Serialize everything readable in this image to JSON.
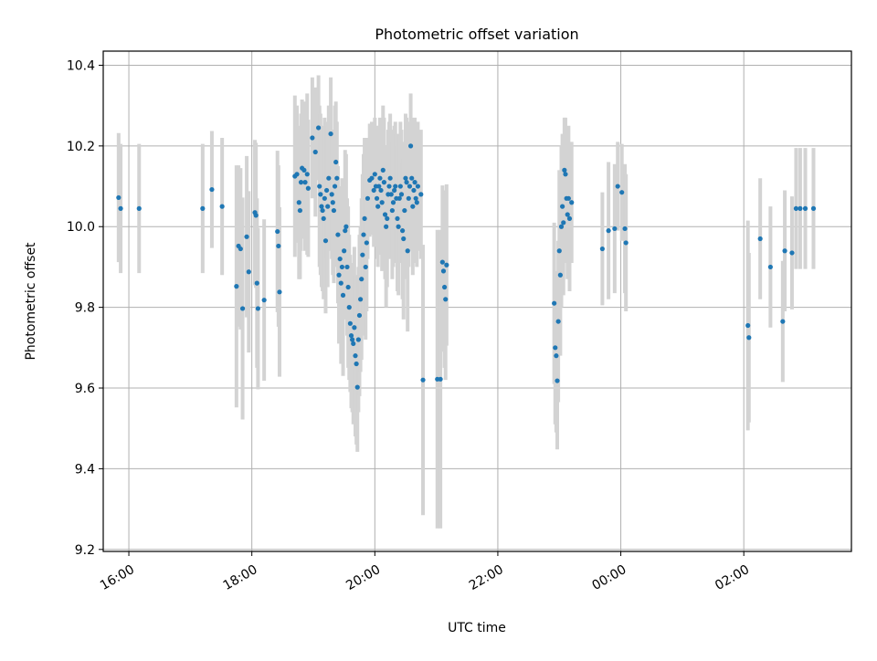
{
  "chart_data": {
    "type": "scatter",
    "title": "Photometric offset variation",
    "xlabel": "UTC time",
    "ylabel": "Photometric offset",
    "x_axis_type": "time",
    "xlim": [
      "15:35",
      "27:45"
    ],
    "ylim": [
      9.195,
      10.435
    ],
    "grid": true,
    "x_ticks": [
      {
        "label": "16:00",
        "value": "16:00"
      },
      {
        "label": "18:00",
        "value": "18:00"
      },
      {
        "label": "20:00",
        "value": "20:00"
      },
      {
        "label": "22:00",
        "value": "22:00"
      },
      {
        "label": "00:00",
        "value": "24:00"
      },
      {
        "label": "02:00",
        "value": "26:00"
      }
    ],
    "y_ticks": [
      {
        "label": "9.2",
        "value": 9.2
      },
      {
        "label": "9.4",
        "value": 9.4
      },
      {
        "label": "9.6",
        "value": 9.6
      },
      {
        "label": "9.8",
        "value": 9.8
      },
      {
        "label": "10.0",
        "value": 10.0
      },
      {
        "label": "10.2",
        "value": 10.2
      },
      {
        "label": "10.4",
        "value": 10.4
      }
    ],
    "marker_color": "#1f77b4",
    "errorbar_color": "#d3d3d3",
    "series": [
      {
        "points": [
          {
            "t": "15:50",
            "y": 10.072,
            "err": 0.16
          },
          {
            "t": "15:52",
            "y": 10.045,
            "err": 0.16
          },
          {
            "t": "16:10",
            "y": 10.045,
            "err": 0.16
          },
          {
            "t": "17:12",
            "y": 10.045,
            "err": 0.16
          },
          {
            "t": "17:21",
            "y": 10.092,
            "err": 0.145
          },
          {
            "t": "17:31",
            "y": 10.05,
            "err": 0.17
          },
          {
            "t": "17:45",
            "y": 9.852,
            "err": 0.3
          },
          {
            "t": "17:47",
            "y": 9.952,
            "err": 0.2
          },
          {
            "t": "17:49",
            "y": 9.945,
            "err": 0.2
          },
          {
            "t": "17:51",
            "y": 9.797,
            "err": 0.275
          },
          {
            "t": "17:55",
            "y": 9.975,
            "err": 0.2
          },
          {
            "t": "17:57",
            "y": 9.888,
            "err": 0.2
          },
          {
            "t": "18:03",
            "y": 10.035,
            "err": 0.18
          },
          {
            "t": "18:04",
            "y": 10.028,
            "err": 0.18
          },
          {
            "t": "18:05",
            "y": 9.86,
            "err": 0.21
          },
          {
            "t": "18:06",
            "y": 9.797,
            "err": 0.2
          },
          {
            "t": "18:12",
            "y": 9.818,
            "err": 0.2
          },
          {
            "t": "18:25",
            "y": 9.988,
            "err": 0.2
          },
          {
            "t": "18:26",
            "y": 9.952,
            "err": 0.2
          },
          {
            "t": "18:27",
            "y": 9.838,
            "err": 0.21
          },
          {
            "t": "18:42",
            "y": 10.125,
            "err": 0.2
          },
          {
            "t": "18:44",
            "y": 10.13,
            "err": 0.17
          },
          {
            "t": "18:46",
            "y": 10.06,
            "err": 0.19
          },
          {
            "t": "18:47",
            "y": 10.04,
            "err": 0.17
          },
          {
            "t": "18:48",
            "y": 10.11,
            "err": 0.17
          },
          {
            "t": "18:49",
            "y": 10.145,
            "err": 0.17
          },
          {
            "t": "18:51",
            "y": 10.14,
            "err": 0.17
          },
          {
            "t": "18:52",
            "y": 10.11,
            "err": 0.17
          },
          {
            "t": "18:54",
            "y": 10.13,
            "err": 0.2
          },
          {
            "t": "18:55",
            "y": 10.095,
            "err": 0.17
          },
          {
            "t": "18:59",
            "y": 10.22,
            "err": 0.15
          },
          {
            "t": "19:02",
            "y": 10.185,
            "err": 0.16
          },
          {
            "t": "19:05",
            "y": 10.245,
            "err": 0.13
          },
          {
            "t": "19:06",
            "y": 10.1,
            "err": 0.2
          },
          {
            "t": "19:07",
            "y": 10.08,
            "err": 0.2
          },
          {
            "t": "19:08",
            "y": 10.05,
            "err": 0.2
          },
          {
            "t": "19:09",
            "y": 10.04,
            "err": 0.2
          },
          {
            "t": "19:10",
            "y": 10.02,
            "err": 0.2
          },
          {
            "t": "19:11",
            "y": 10.07,
            "err": 0.2
          },
          {
            "t": "19:12",
            "y": 9.965,
            "err": 0.18
          },
          {
            "t": "19:13",
            "y": 10.09,
            "err": 0.17
          },
          {
            "t": "19:14",
            "y": 10.05,
            "err": 0.2
          },
          {
            "t": "19:15",
            "y": 10.12,
            "err": 0.18
          },
          {
            "t": "19:17",
            "y": 10.23,
            "err": 0.14
          },
          {
            "t": "19:18",
            "y": 10.08,
            "err": 0.16
          },
          {
            "t": "19:19",
            "y": 10.06,
            "err": 0.18
          },
          {
            "t": "19:20",
            "y": 10.04,
            "err": 0.18
          },
          {
            "t": "19:21",
            "y": 10.1,
            "err": 0.2
          },
          {
            "t": "19:22",
            "y": 10.16,
            "err": 0.15
          },
          {
            "t": "19:23",
            "y": 10.12,
            "err": 0.14
          },
          {
            "t": "19:24",
            "y": 9.98,
            "err": 0.17
          },
          {
            "t": "19:25",
            "y": 9.88,
            "err": 0.17
          },
          {
            "t": "19:26",
            "y": 9.92,
            "err": 0.18
          },
          {
            "t": "19:27",
            "y": 9.86,
            "err": 0.2
          },
          {
            "t": "19:28",
            "y": 9.9,
            "err": 0.22
          },
          {
            "t": "19:29",
            "y": 9.83,
            "err": 0.2
          },
          {
            "t": "19:30",
            "y": 9.94,
            "err": 0.17
          },
          {
            "t": "19:31",
            "y": 9.99,
            "err": 0.2
          },
          {
            "t": "19:32",
            "y": 10.0,
            "err": 0.18
          },
          {
            "t": "19:33",
            "y": 9.9,
            "err": 0.17
          },
          {
            "t": "19:34",
            "y": 9.85,
            "err": 0.2
          },
          {
            "t": "19:35",
            "y": 9.8,
            "err": 0.18
          },
          {
            "t": "19:36",
            "y": 9.76,
            "err": 0.17
          },
          {
            "t": "19:37",
            "y": 9.73,
            "err": 0.18
          },
          {
            "t": "19:38",
            "y": 9.72,
            "err": 0.18
          },
          {
            "t": "19:39",
            "y": 9.71,
            "err": 0.2
          },
          {
            "t": "19:40",
            "y": 9.75,
            "err": 0.2
          },
          {
            "t": "19:41",
            "y": 9.68,
            "err": 0.2
          },
          {
            "t": "19:42",
            "y": 9.66,
            "err": 0.2
          },
          {
            "t": "19:43",
            "y": 9.602,
            "err": 0.16
          },
          {
            "t": "19:44",
            "y": 9.72,
            "err": 0.18
          },
          {
            "t": "19:45",
            "y": 9.78,
            "err": 0.2
          },
          {
            "t": "19:46",
            "y": 9.82,
            "err": 0.18
          },
          {
            "t": "19:47",
            "y": 9.87,
            "err": 0.2
          },
          {
            "t": "19:48",
            "y": 9.93,
            "err": 0.2
          },
          {
            "t": "19:49",
            "y": 9.98,
            "err": 0.2
          },
          {
            "t": "19:50",
            "y": 10.02,
            "err": 0.2
          },
          {
            "t": "19:51",
            "y": 9.9,
            "err": 0.18
          },
          {
            "t": "19:52",
            "y": 9.96,
            "err": 0.17
          },
          {
            "t": "19:53",
            "y": 10.07,
            "err": 0.15
          },
          {
            "t": "19:55",
            "y": 10.115,
            "err": 0.14
          },
          {
            "t": "19:57",
            "y": 10.12,
            "err": 0.14
          },
          {
            "t": "19:59",
            "y": 10.09,
            "err": 0.14
          },
          {
            "t": "20:00",
            "y": 10.13,
            "err": 0.14
          },
          {
            "t": "20:01",
            "y": 10.1,
            "err": 0.15
          },
          {
            "t": "20:02",
            "y": 10.07,
            "err": 0.15
          },
          {
            "t": "20:03",
            "y": 10.05,
            "err": 0.15
          },
          {
            "t": "20:04",
            "y": 10.1,
            "err": 0.15
          },
          {
            "t": "20:05",
            "y": 10.12,
            "err": 0.15
          },
          {
            "t": "20:06",
            "y": 10.09,
            "err": 0.16
          },
          {
            "t": "20:07",
            "y": 10.06,
            "err": 0.17
          },
          {
            "t": "20:08",
            "y": 10.14,
            "err": 0.16
          },
          {
            "t": "20:09",
            "y": 10.11,
            "err": 0.16
          },
          {
            "t": "20:10",
            "y": 10.03,
            "err": 0.16
          },
          {
            "t": "20:11",
            "y": 10.0,
            "err": 0.2
          },
          {
            "t": "20:12",
            "y": 10.02,
            "err": 0.17
          },
          {
            "t": "20:13",
            "y": 10.08,
            "err": 0.16
          },
          {
            "t": "20:14",
            "y": 10.1,
            "err": 0.16
          },
          {
            "t": "20:15",
            "y": 10.12,
            "err": 0.16
          },
          {
            "t": "20:16",
            "y": 10.08,
            "err": 0.16
          },
          {
            "t": "20:17",
            "y": 10.04,
            "err": 0.17
          },
          {
            "t": "20:18",
            "y": 10.06,
            "err": 0.16
          },
          {
            "t": "20:19",
            "y": 10.09,
            "err": 0.16
          },
          {
            "t": "20:20",
            "y": 10.1,
            "err": 0.16
          },
          {
            "t": "20:21",
            "y": 10.07,
            "err": 0.16
          },
          {
            "t": "20:22",
            "y": 10.02,
            "err": 0.18
          },
          {
            "t": "20:23",
            "y": 10.0,
            "err": 0.17
          },
          {
            "t": "20:24",
            "y": 10.07,
            "err": 0.16
          },
          {
            "t": "20:25",
            "y": 10.1,
            "err": 0.16
          },
          {
            "t": "20:26",
            "y": 10.08,
            "err": 0.16
          },
          {
            "t": "20:27",
            "y": 9.99,
            "err": 0.17
          },
          {
            "t": "20:28",
            "y": 9.97,
            "err": 0.2
          },
          {
            "t": "20:29",
            "y": 10.04,
            "err": 0.17
          },
          {
            "t": "20:30",
            "y": 10.12,
            "err": 0.16
          },
          {
            "t": "20:31",
            "y": 10.11,
            "err": 0.16
          },
          {
            "t": "20:32",
            "y": 9.94,
            "err": 0.2
          },
          {
            "t": "20:33",
            "y": 10.07,
            "err": 0.17
          },
          {
            "t": "20:34",
            "y": 10.1,
            "err": 0.16
          },
          {
            "t": "20:35",
            "y": 10.2,
            "err": 0.13
          },
          {
            "t": "20:36",
            "y": 10.12,
            "err": 0.15
          },
          {
            "t": "20:37",
            "y": 10.05,
            "err": 0.17
          },
          {
            "t": "20:38",
            "y": 10.09,
            "err": 0.17
          },
          {
            "t": "20:39",
            "y": 10.11,
            "err": 0.16
          },
          {
            "t": "20:40",
            "y": 10.07,
            "err": 0.16
          },
          {
            "t": "20:41",
            "y": 10.06,
            "err": 0.16
          },
          {
            "t": "20:42",
            "y": 10.1,
            "err": 0.16
          },
          {
            "t": "20:45",
            "y": 10.08,
            "err": 0.16
          },
          {
            "t": "20:47",
            "y": 9.62,
            "err": 0.335
          },
          {
            "t": "21:01",
            "y": 9.622,
            "err": 0.37
          },
          {
            "t": "21:04",
            "y": 9.622,
            "err": 0.37
          },
          {
            "t": "21:06",
            "y": 9.912,
            "err": 0.19
          },
          {
            "t": "21:07",
            "y": 9.89,
            "err": 0.2
          },
          {
            "t": "21:08",
            "y": 9.85,
            "err": 0.2
          },
          {
            "t": "21:09",
            "y": 9.82,
            "err": 0.2
          },
          {
            "t": "21:10",
            "y": 9.905,
            "err": 0.2
          },
          {
            "t": "22:55",
            "y": 9.81,
            "err": 0.2
          },
          {
            "t": "22:56",
            "y": 9.7,
            "err": 0.19
          },
          {
            "t": "22:57",
            "y": 9.68,
            "err": 0.19
          },
          {
            "t": "22:58",
            "y": 9.618,
            "err": 0.17
          },
          {
            "t": "22:59",
            "y": 9.765,
            "err": 0.2
          },
          {
            "t": "23:00",
            "y": 9.94,
            "err": 0.2
          },
          {
            "t": "23:01",
            "y": 9.88,
            "err": 0.2
          },
          {
            "t": "23:02",
            "y": 10.0,
            "err": 0.2
          },
          {
            "t": "23:03",
            "y": 10.05,
            "err": 0.18
          },
          {
            "t": "23:04",
            "y": 10.01,
            "err": 0.18
          },
          {
            "t": "23:05",
            "y": 10.14,
            "err": 0.13
          },
          {
            "t": "23:06",
            "y": 10.13,
            "err": 0.14
          },
          {
            "t": "23:07",
            "y": 10.07,
            "err": 0.16
          },
          {
            "t": "23:08",
            "y": 10.03,
            "err": 0.16
          },
          {
            "t": "23:09",
            "y": 10.07,
            "err": 0.18
          },
          {
            "t": "23:10",
            "y": 10.02,
            "err": 0.18
          },
          {
            "t": "23:12",
            "y": 10.06,
            "err": 0.15
          },
          {
            "t": "23:42",
            "y": 9.945,
            "err": 0.14
          },
          {
            "t": "23:48",
            "y": 9.99,
            "err": 0.17
          },
          {
            "t": "23:54",
            "y": 9.995,
            "err": 0.16
          },
          {
            "t": "23:57",
            "y": 10.1,
            "err": 0.11
          },
          {
            "t": "24:01",
            "y": 10.085,
            "err": 0.12
          },
          {
            "t": "24:04",
            "y": 9.995,
            "err": 0.16
          },
          {
            "t": "24:05",
            "y": 9.96,
            "err": 0.17
          },
          {
            "t": "26:04",
            "y": 9.755,
            "err": 0.26
          },
          {
            "t": "26:05",
            "y": 9.725,
            "err": 0.21
          },
          {
            "t": "26:16",
            "y": 9.97,
            "err": 0.15
          },
          {
            "t": "26:26",
            "y": 9.9,
            "err": 0.15
          },
          {
            "t": "26:38",
            "y": 9.765,
            "err": 0.15
          },
          {
            "t": "26:40",
            "y": 9.94,
            "err": 0.15
          },
          {
            "t": "26:47",
            "y": 9.935,
            "err": 0.14
          },
          {
            "t": "26:51",
            "y": 10.045,
            "err": 0.15
          },
          {
            "t": "26:55",
            "y": 10.045,
            "err": 0.15
          },
          {
            "t": "27:00",
            "y": 10.045,
            "err": 0.15
          },
          {
            "t": "27:08",
            "y": 10.045,
            "err": 0.15
          }
        ]
      }
    ]
  }
}
